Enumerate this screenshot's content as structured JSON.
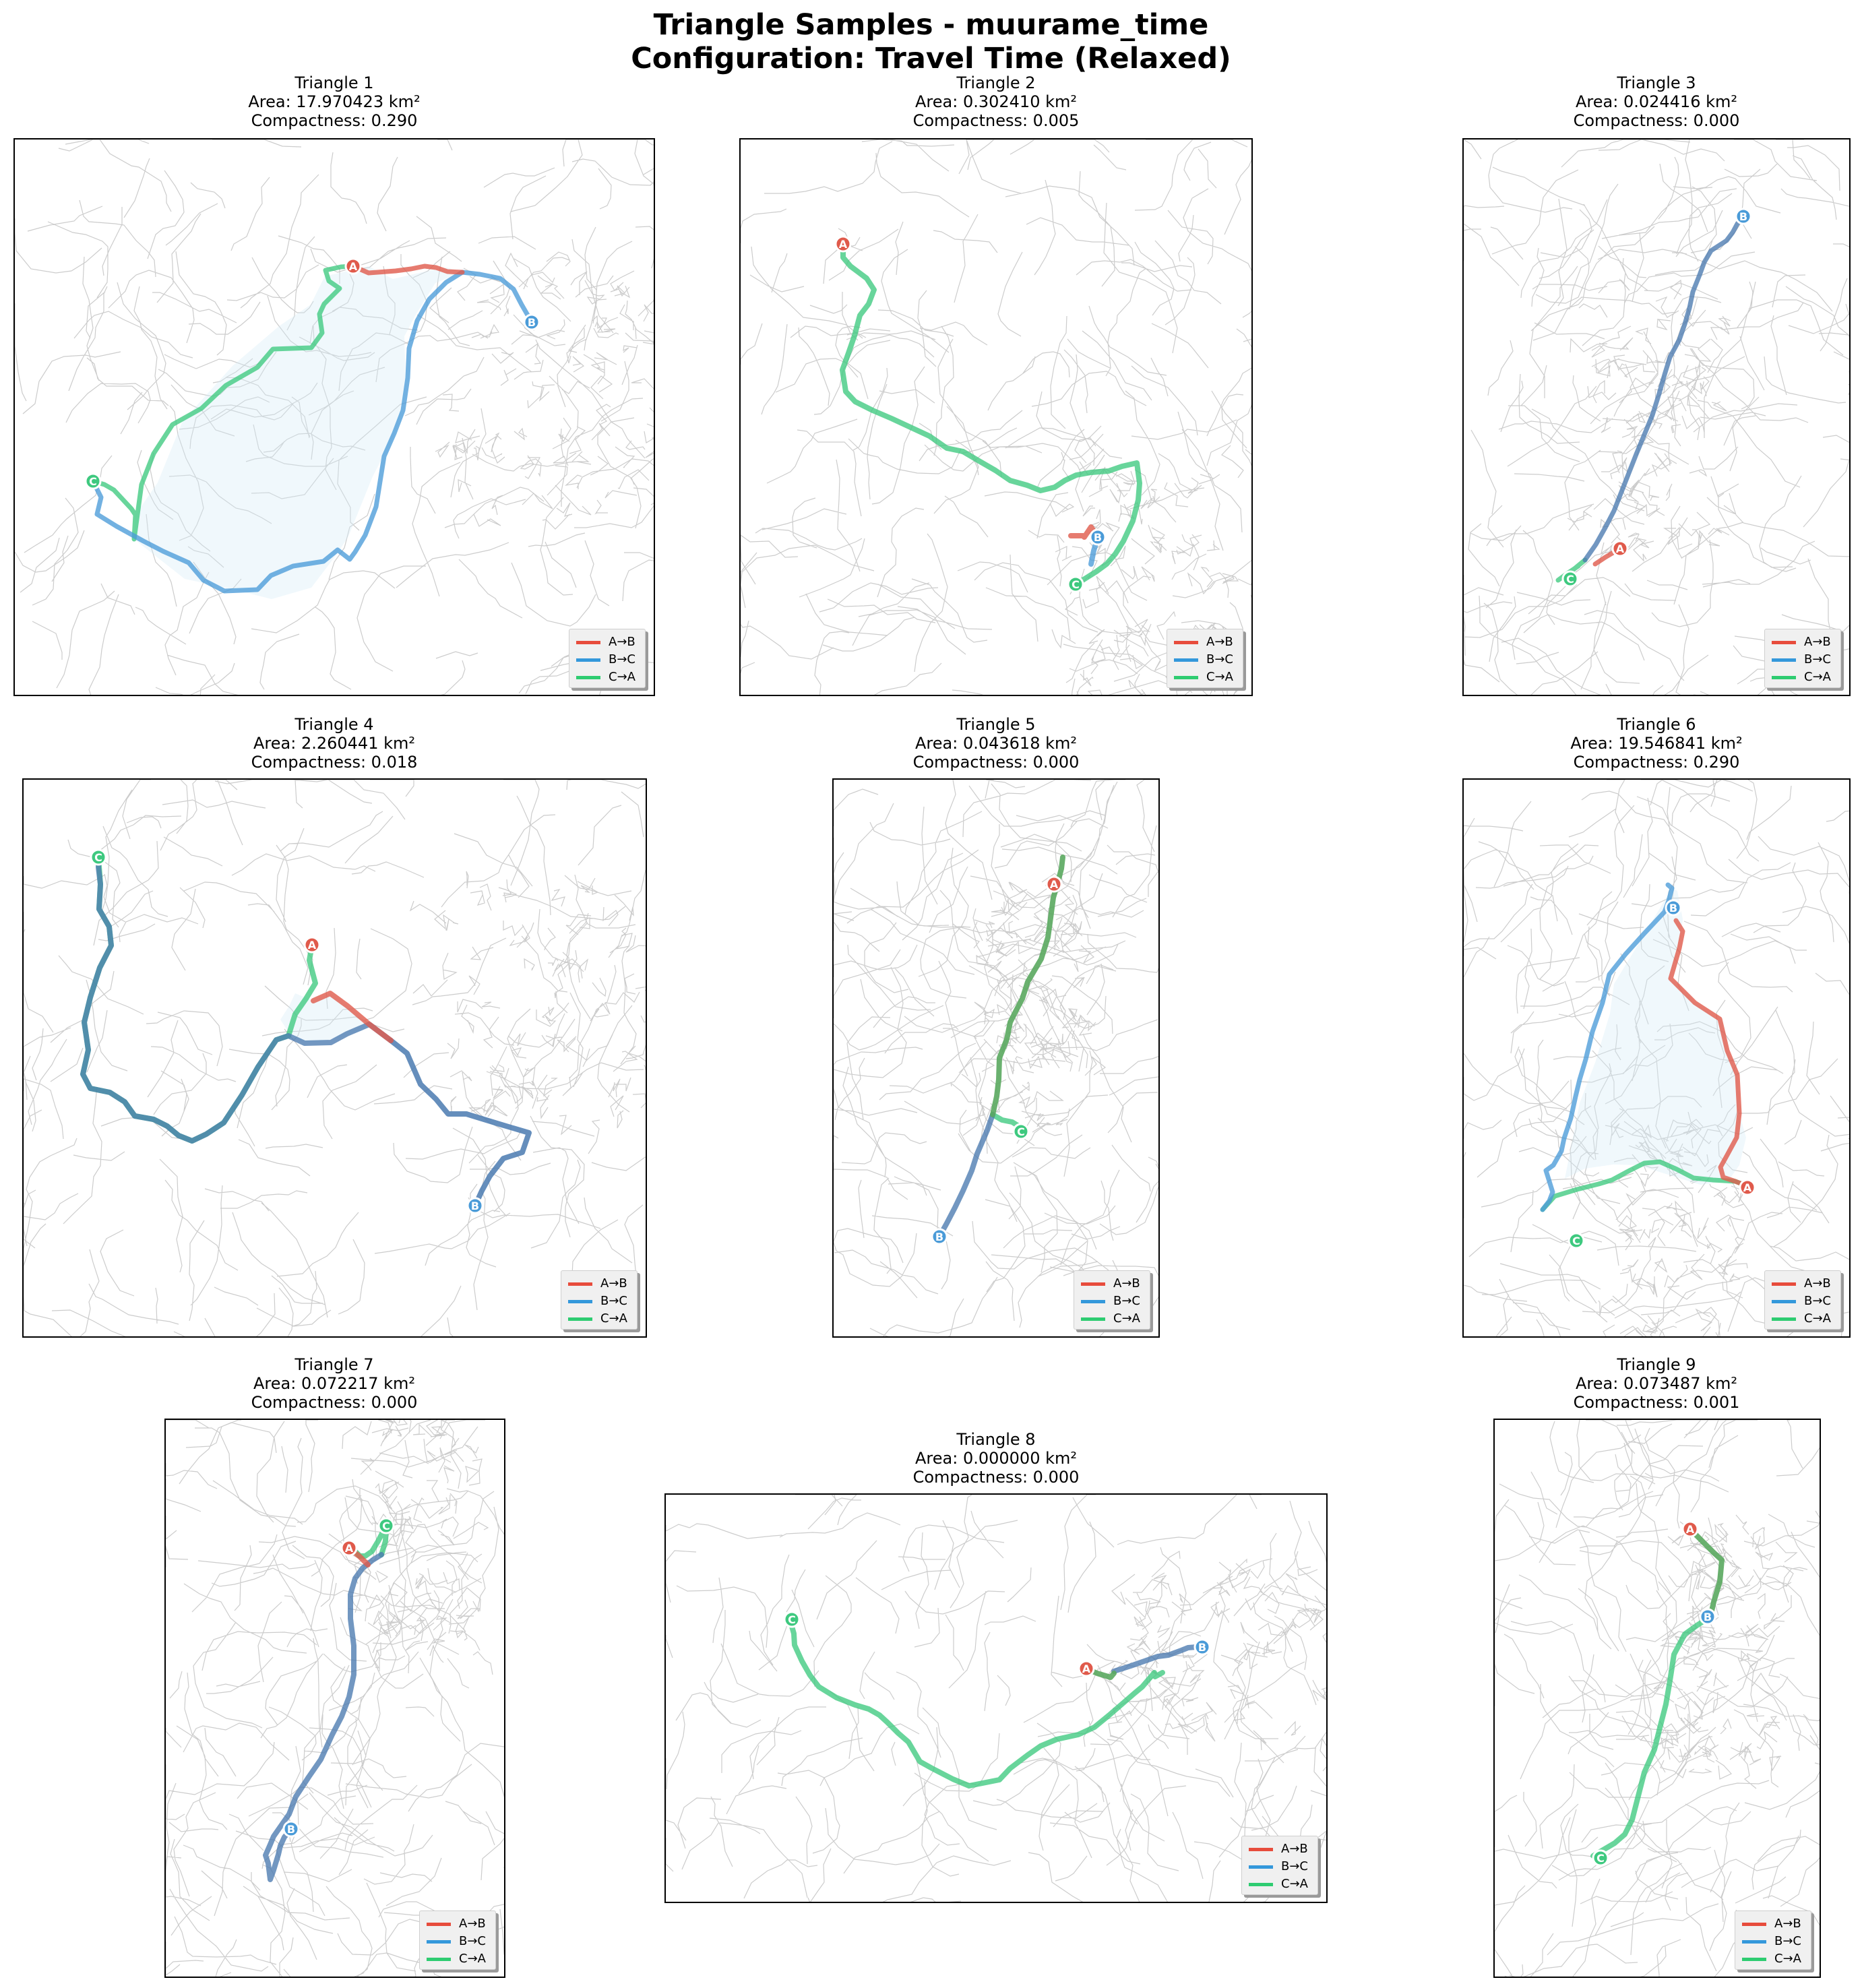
{
  "figure": {
    "title_line1": "Triangle Samples - muurame_time",
    "title_line2": "Configuration: Travel Time (Relaxed)"
  },
  "colors": {
    "ab": "#e05a4b",
    "bc": "#4a9bd8",
    "ca": "#3ec97f",
    "fill": "#d4ebf6",
    "roads": "#cccccc",
    "legend_ab": "#e74c3c",
    "legend_bc": "#3498db",
    "legend_ca": "#2ecc71"
  },
  "legend": {
    "ab": "A→B",
    "bc": "B→C",
    "ca": "C→A"
  },
  "markers": {
    "a": "A",
    "b": "B",
    "c": "C"
  },
  "panels": [
    {
      "title": "Triangle 1",
      "area": "Area: 17.970423 km²",
      "compactness": "Compactness: 0.290"
    },
    {
      "title": "Triangle 2",
      "area": "Area: 0.302410 km²",
      "compactness": "Compactness: 0.005"
    },
    {
      "title": "Triangle 3",
      "area": "Area: 0.024416 km²",
      "compactness": "Compactness: 0.000"
    },
    {
      "title": "Triangle 4",
      "area": "Area: 2.260441 km²",
      "compactness": "Compactness: 0.018"
    },
    {
      "title": "Triangle 5",
      "area": "Area: 0.043618 km²",
      "compactness": "Compactness: 0.000"
    },
    {
      "title": "Triangle 6",
      "area": "Area: 19.546841 km²",
      "compactness": "Compactness: 0.290"
    },
    {
      "title": "Triangle 7",
      "area": "Area: 0.072217 km²",
      "compactness": "Compactness: 0.000"
    },
    {
      "title": "Triangle 8",
      "area": "Area: 0.000000 km²",
      "compactness": "Compactness: 0.000"
    },
    {
      "title": "Triangle 9",
      "area": "Area: 0.073487 km²",
      "compactness": "Compactness: 0.001"
    }
  ]
}
